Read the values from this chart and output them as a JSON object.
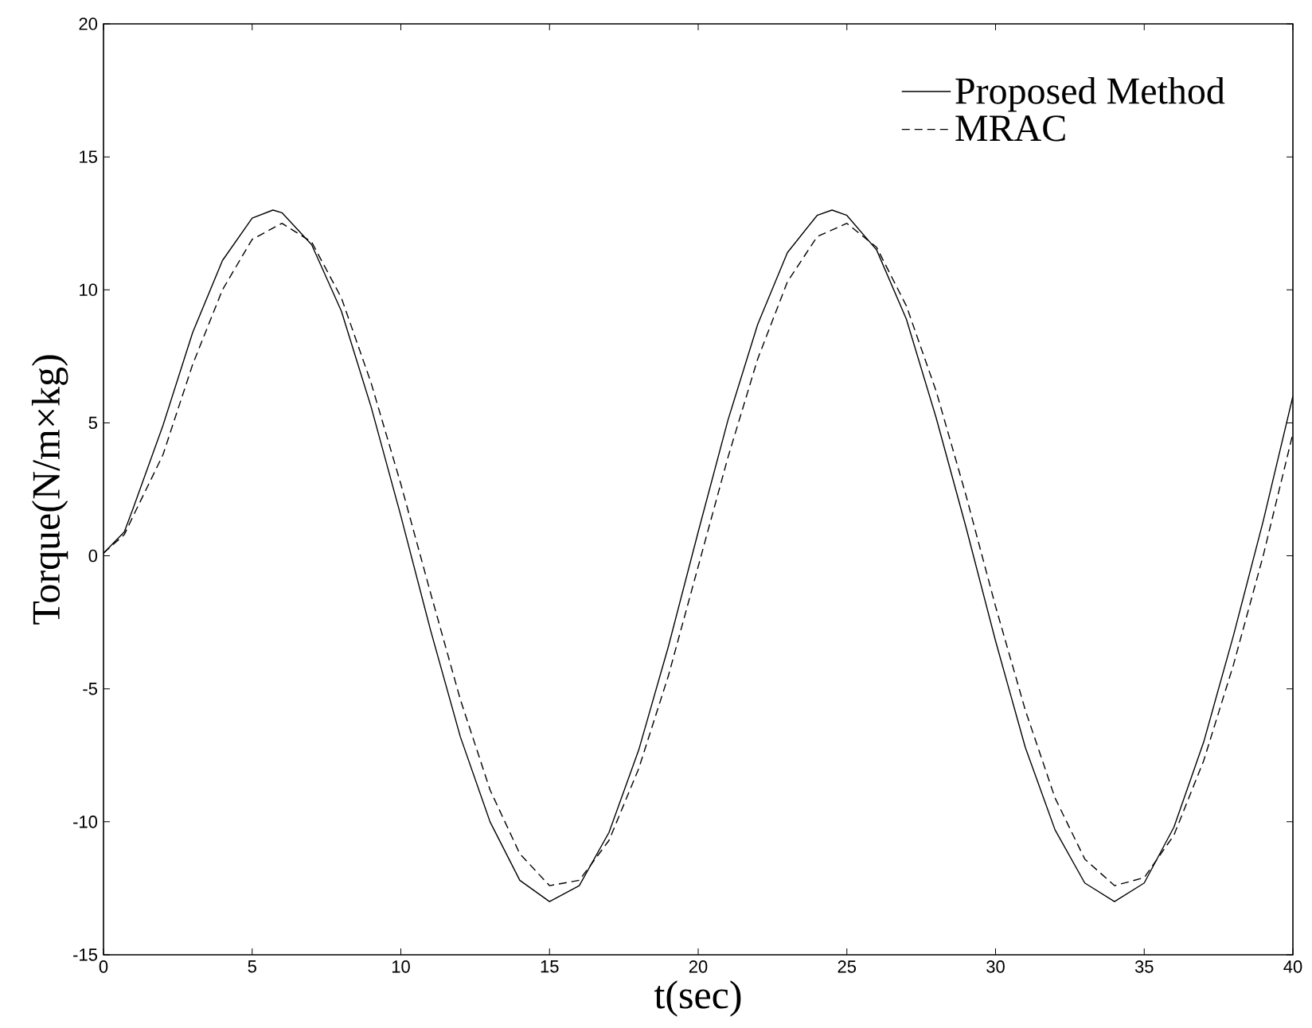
{
  "chart_data": {
    "type": "line",
    "xlabel": "t(sec)",
    "ylabel": "Torque(N/m×kg)",
    "xlim": [
      0,
      40
    ],
    "ylim": [
      -15,
      20
    ],
    "xticks": [
      0,
      5,
      10,
      15,
      20,
      25,
      30,
      35,
      40
    ],
    "yticks": [
      -15,
      -10,
      -5,
      0,
      5,
      10,
      15,
      20
    ],
    "legend": "top right",
    "grid": false,
    "series": [
      {
        "name": "Proposed Method",
        "color": "#000000",
        "line_style": "solid",
        "x": [
          0,
          0.7,
          1,
          2,
          3,
          4,
          5,
          5.7,
          6,
          7,
          8,
          9,
          10,
          11,
          12,
          13,
          14,
          15,
          16,
          17,
          18,
          19,
          20,
          21,
          22,
          23,
          24,
          24.5,
          25,
          26,
          27,
          28,
          29,
          30,
          31,
          32,
          33,
          34,
          35,
          36,
          37,
          38,
          39,
          40
        ],
        "values": [
          0.1,
          0.9,
          1.8,
          4.9,
          8.4,
          11.1,
          12.7,
          13,
          12.9,
          11.7,
          9.2,
          5.6,
          1.5,
          -2.8,
          -6.8,
          -10,
          -12.2,
          -13,
          -12.4,
          -10.4,
          -7.3,
          -3.4,
          0.9,
          5.1,
          8.7,
          11.4,
          12.8,
          13,
          12.8,
          11.5,
          8.9,
          5.2,
          1.1,
          -3.2,
          -7.2,
          -10.3,
          -12.3,
          -13,
          -12.3,
          -10.2,
          -7,
          -3,
          1.3,
          6
        ]
      },
      {
        "name": "MRAC",
        "color": "#000000",
        "line_style": "dashed",
        "x": [
          0,
          0.7,
          1,
          2,
          3,
          4,
          5,
          6,
          7,
          8,
          9,
          10,
          11,
          12,
          13,
          14,
          15,
          16,
          17,
          18,
          19,
          20,
          21,
          22,
          23,
          24,
          25,
          26,
          27,
          28,
          29,
          30,
          31,
          32,
          33,
          34,
          35,
          36,
          37,
          38,
          39,
          40
        ],
        "values": [
          0.1,
          0.8,
          1.5,
          3.8,
          7.2,
          10,
          11.9,
          12.5,
          11.8,
          9.7,
          6.5,
          2.7,
          -1.4,
          -5.4,
          -8.8,
          -11.2,
          -12.4,
          -12.2,
          -10.7,
          -8,
          -4.5,
          -0.4,
          3.7,
          7.4,
          10.3,
          12,
          12.5,
          11.6,
          9.4,
          6.2,
          2.3,
          -1.9,
          -5.8,
          -9.1,
          -11.4,
          -12.4,
          -12.1,
          -10.5,
          -7.7,
          -4.1,
          0,
          4.6
        ]
      }
    ]
  }
}
